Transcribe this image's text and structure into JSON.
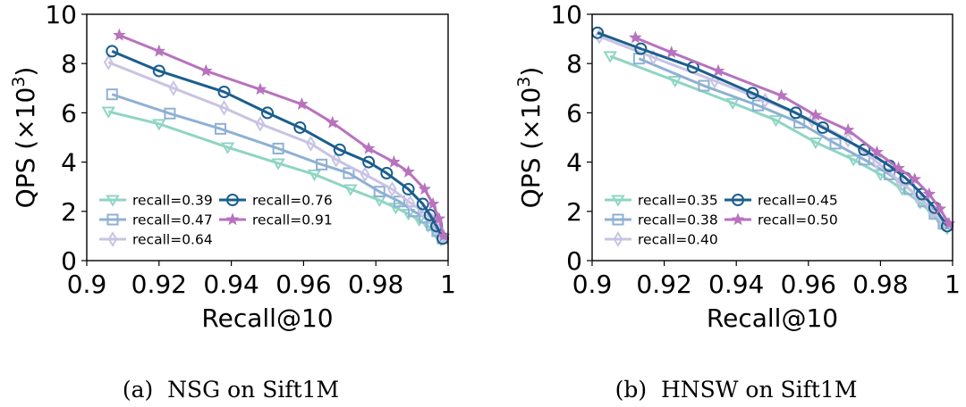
{
  "chart_data": [
    {
      "type": "line",
      "caption": "(a)  NSG on Sift1M",
      "xlabel": "Recall@10",
      "ylabel": "QPS (×10",
      "ylabel_sup": "3",
      "ylabel_close": ")",
      "xlim": [
        0.9,
        1.0
      ],
      "ylim": [
        0,
        10
      ],
      "xticks": [
        0.9,
        0.92,
        0.94,
        0.96,
        0.98,
        1.0
      ],
      "xtick_labels": [
        "0.9",
        "0.92",
        "0.94",
        "0.96",
        "0.98",
        "1"
      ],
      "yticks": [
        0,
        2,
        4,
        6,
        8,
        10
      ],
      "ytick_labels": [
        "0",
        "2",
        "4",
        "6",
        "8",
        "10"
      ],
      "legend_location": "lower-left",
      "legend_columns": 2,
      "grid": false,
      "series": [
        {
          "name": "recall=0.39",
          "color": "#8fd5c3",
          "marker": "triangle-down",
          "x": [
            0.906,
            0.92,
            0.939,
            0.953,
            0.963,
            0.973,
            0.981,
            0.9855,
            0.989,
            0.992,
            0.9945,
            0.9965,
            0.998
          ],
          "y": [
            6.05,
            5.55,
            4.6,
            3.95,
            3.5,
            2.9,
            2.45,
            2.15,
            1.9,
            1.65,
            1.4,
            1.15,
            0.85
          ]
        },
        {
          "name": "recall=0.47",
          "color": "#8fb0d4",
          "marker": "square",
          "x": [
            0.907,
            0.923,
            0.937,
            0.953,
            0.965,
            0.9725,
            0.981,
            0.9865,
            0.9905,
            0.9935,
            0.9955,
            0.997,
            0.9985
          ],
          "y": [
            6.75,
            5.97,
            5.35,
            4.55,
            3.9,
            3.55,
            2.8,
            2.4,
            2.0,
            1.75,
            1.45,
            1.2,
            0.9
          ]
        },
        {
          "name": "recall=0.64",
          "color": "#c8c4e3",
          "marker": "diamond",
          "x": [
            0.906,
            0.924,
            0.938,
            0.948,
            0.962,
            0.969,
            0.977,
            0.9845,
            0.9895,
            0.993,
            0.9955,
            0.997,
            0.9985
          ],
          "y": [
            8.05,
            7.0,
            6.2,
            5.55,
            4.75,
            4.1,
            3.5,
            2.9,
            2.35,
            2.0,
            1.65,
            1.3,
            0.9
          ]
        },
        {
          "name": "recall=0.76",
          "color": "#1a5e8d",
          "marker": "circle",
          "x": [
            0.907,
            0.92,
            0.938,
            0.95,
            0.959,
            0.97,
            0.978,
            0.983,
            0.989,
            0.993,
            0.995,
            0.9968,
            0.9985
          ],
          "y": [
            8.5,
            7.7,
            6.85,
            6.0,
            5.4,
            4.5,
            4.0,
            3.55,
            2.9,
            2.3,
            1.85,
            1.4,
            0.9
          ]
        },
        {
          "name": "recall=0.91",
          "color": "#b872be",
          "marker": "star",
          "x": [
            0.909,
            0.92,
            0.933,
            0.948,
            0.9595,
            0.968,
            0.978,
            0.985,
            0.989,
            0.9935,
            0.9958,
            0.9975,
            0.9988
          ],
          "y": [
            9.15,
            8.5,
            7.7,
            6.95,
            6.35,
            5.6,
            4.55,
            4.0,
            3.6,
            2.9,
            2.3,
            1.7,
            1.0
          ]
        }
      ]
    },
    {
      "type": "line",
      "caption": "(b)  HNSW on Sift1M",
      "xlabel": "Recall@10",
      "ylabel": "QPS (×10",
      "ylabel_sup": "3",
      "ylabel_close": ")",
      "xlim": [
        0.9,
        1.0
      ],
      "ylim": [
        0,
        10
      ],
      "xticks": [
        0.9,
        0.92,
        0.94,
        0.96,
        0.98,
        1.0
      ],
      "xtick_labels": [
        "0.9",
        "0.92",
        "0.94",
        "0.96",
        "0.98",
        "1"
      ],
      "yticks": [
        0,
        2,
        4,
        6,
        8,
        10
      ],
      "ytick_labels": [
        "0",
        "2",
        "4",
        "6",
        "8",
        "10"
      ],
      "legend_location": "lower-left",
      "legend_columns": 2,
      "grid": false,
      "series": [
        {
          "name": "recall=0.35",
          "color": "#8fd5c3",
          "marker": "triangle-down",
          "x": [
            0.905,
            0.923,
            0.939,
            0.951,
            0.962,
            0.9725,
            0.98,
            0.986,
            0.991,
            0.9945,
            0.997,
            0.9985
          ],
          "y": [
            8.3,
            7.3,
            6.4,
            5.7,
            4.8,
            4.1,
            3.5,
            2.9,
            2.35,
            1.9,
            1.5,
            1.3
          ]
        },
        {
          "name": "recall=0.38",
          "color": "#8fb0d4",
          "marker": "square",
          "x": [
            0.913,
            0.931,
            0.946,
            0.9575,
            0.9675,
            0.9755,
            0.9825,
            0.988,
            0.992,
            0.995,
            0.9975
          ],
          "y": [
            8.2,
            7.1,
            6.3,
            5.6,
            4.75,
            4.1,
            3.5,
            2.9,
            2.4,
            1.9,
            1.5
          ]
        },
        {
          "name": "recall=0.40",
          "color": "#c8c4e3",
          "marker": "diamond",
          "x": [
            0.902,
            0.917,
            0.934,
            0.948,
            0.961,
            0.971,
            0.979,
            0.9855,
            0.9905,
            0.9945,
            0.9975
          ],
          "y": [
            9.1,
            8.25,
            7.3,
            6.5,
            5.7,
            4.9,
            4.0,
            3.2,
            2.6,
            2.0,
            1.5
          ]
        },
        {
          "name": "recall=0.45",
          "color": "#1a5e8d",
          "marker": "circle",
          "x": [
            0.9015,
            0.9135,
            0.928,
            0.9445,
            0.9565,
            0.964,
            0.9755,
            0.9825,
            0.987,
            0.9915,
            0.995,
            0.9985
          ],
          "y": [
            9.25,
            8.6,
            7.85,
            6.8,
            6.0,
            5.4,
            4.5,
            3.85,
            3.35,
            2.7,
            2.15,
            1.4
          ]
        },
        {
          "name": "recall=0.50",
          "color": "#b872be",
          "marker": "star",
          "x": [
            0.912,
            0.922,
            0.935,
            0.9525,
            0.962,
            0.971,
            0.979,
            0.985,
            0.9895,
            0.9935,
            0.9965,
            0.999
          ],
          "y": [
            9.05,
            8.45,
            7.7,
            6.7,
            5.9,
            5.3,
            4.4,
            3.75,
            3.3,
            2.7,
            2.1,
            1.5
          ]
        }
      ]
    }
  ]
}
